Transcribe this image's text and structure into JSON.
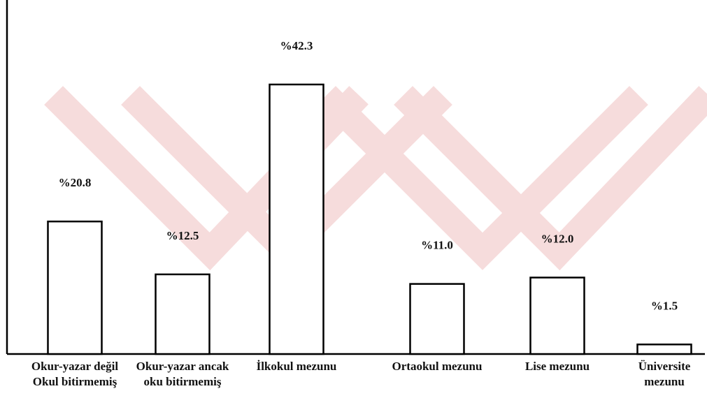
{
  "chart_data": {
    "type": "bar",
    "categories": [
      [
        "Okur-yazar değil",
        "Okul bitirmemiş"
      ],
      [
        "Okur-yazar ancak",
        "oku bitirmemiş"
      ],
      [
        "İlkokul mezunu"
      ],
      [
        "Ortaokul mezunu"
      ],
      [
        "Lise mezunu"
      ],
      [
        "Üniversite",
        "mezunu"
      ]
    ],
    "values": [
      20.8,
      12.5,
      42.3,
      11.0,
      12.0,
      1.5
    ],
    "data_labels": [
      "%20.8",
      "%12.5",
      "%42.3",
      "%11.0",
      "%12.0",
      "%1.5"
    ],
    "title": "",
    "xlabel": "",
    "ylabel": "",
    "grid": false,
    "legend": "none",
    "colors": {
      "bar_fill": "#ffffff",
      "bar_stroke": "#000000",
      "watermark": "#f6dcdc"
    }
  }
}
